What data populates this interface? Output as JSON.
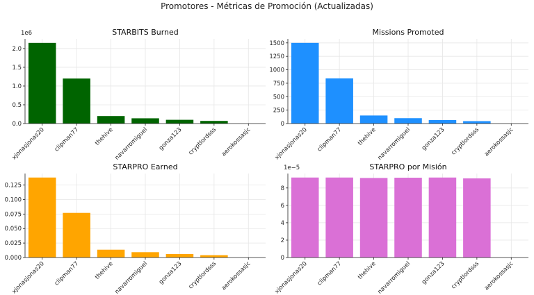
{
  "figure": {
    "title": "Promotores - Métricas de Promoción (Actualizadas)"
  },
  "chart_data": [
    {
      "type": "bar",
      "title": "STARBITS Burned",
      "categories": [
        "xjonasjonas20",
        "clipman77",
        "thehive",
        "navarromiguel",
        "gonza123",
        "cryptlordsss",
        "aerokossasjc"
      ],
      "values": [
        2150000,
        1200000,
        200000,
        140000,
        100000,
        70000,
        0
      ],
      "color": "#006400",
      "ylim": [
        0,
        2257500
      ],
      "yticks": [
        0,
        500000,
        1000000,
        1500000,
        2000000
      ],
      "ytick_labels": [
        "0.0",
        "0.5",
        "1.0",
        "1.5",
        "2.0"
      ],
      "offset_label": "1e6",
      "grid": true
    },
    {
      "type": "bar",
      "title": "Missions Promoted",
      "categories": [
        "xjonasjonas20",
        "clipman77",
        "thehive",
        "navarromiguel",
        "gonza123",
        "cryptlordsss",
        "aerokossasjc"
      ],
      "values": [
        1500,
        840,
        150,
        100,
        65,
        45,
        0
      ],
      "color": "#1E90FF",
      "ylim": [
        0,
        1575
      ],
      "yticks": [
        0,
        250,
        500,
        750,
        1000,
        1250,
        1500
      ],
      "ytick_labels": [
        "0",
        "250",
        "500",
        "750",
        "1000",
        "1250",
        "1500"
      ],
      "grid": true
    },
    {
      "type": "bar",
      "title": "STARPRO Earned",
      "categories": [
        "xjonasjonas20",
        "clipman77",
        "thehive",
        "navarromiguel",
        "gonza123",
        "cryptlordsss",
        "aerokossasjc"
      ],
      "values": [
        0.138,
        0.077,
        0.0135,
        0.0092,
        0.006,
        0.004,
        0
      ],
      "color": "#FFA500",
      "ylim": [
        0,
        0.1449
      ],
      "yticks": [
        0,
        0.025,
        0.05,
        0.075,
        0.1,
        0.125
      ],
      "ytick_labels": [
        "0.000",
        "0.025",
        "0.050",
        "0.075",
        "0.100",
        "0.125"
      ],
      "grid": true
    },
    {
      "type": "bar",
      "title": "STARPRO por Misión",
      "categories": [
        "xjonasjonas20",
        "clipman77",
        "thehive",
        "navarromiguel",
        "gonza123",
        "cryptlordsss",
        "aerokossasjc"
      ],
      "values": [
        9.2e-05,
        9.2e-05,
        9.15e-05,
        9.18e-05,
        9.2e-05,
        9.1e-05,
        0
      ],
      "color": "#DA70D6",
      "ylim": [
        0,
        9.66e-05
      ],
      "yticks": [
        0,
        2e-05,
        4e-05,
        6e-05,
        8e-05
      ],
      "ytick_labels": [
        "0",
        "2",
        "4",
        "6",
        "8"
      ],
      "offset_label": "1e−5",
      "grid": true
    }
  ]
}
